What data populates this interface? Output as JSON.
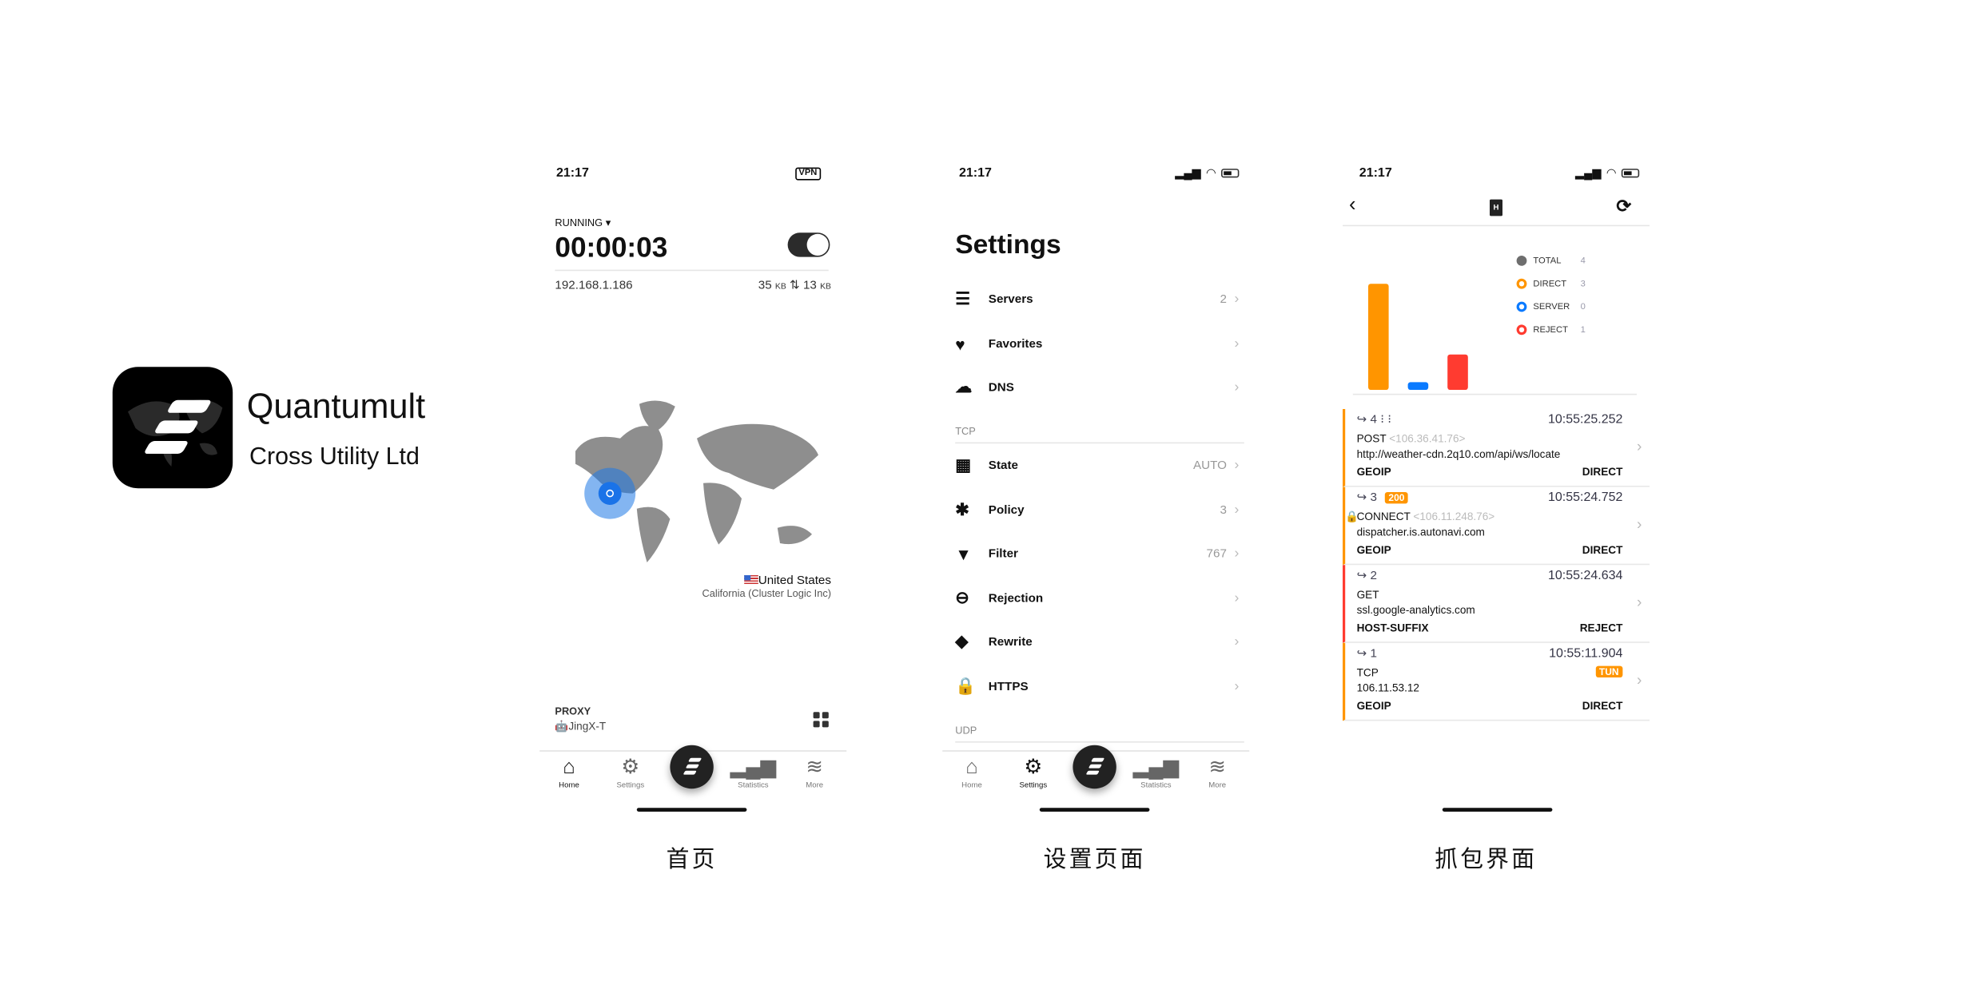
{
  "brand": {
    "name": "Quantumult",
    "company": "Cross Utility Ltd"
  },
  "status_time": "21:17",
  "home": {
    "vpn_badge": "VPN",
    "state": "RUNNING",
    "timer": "00:00:03",
    "vpn_on": true,
    "ip": "192.168.1.186",
    "download": "35",
    "download_unit": "KB",
    "upload": "13",
    "upload_unit": "KB",
    "country": "United States",
    "region": "California (Cluster Logic Inc)",
    "proxy_label": "PROXY",
    "proxy_name": "JingX-T",
    "caption": "首页"
  },
  "tabs": [
    {
      "label": "Home",
      "icon": "house-icon"
    },
    {
      "label": "Settings",
      "icon": "gear-icon"
    },
    {
      "label": "Statistics",
      "icon": "bar-chart-icon"
    },
    {
      "label": "More",
      "icon": "layers-icon"
    }
  ],
  "settings": {
    "title": "Settings",
    "items": [
      {
        "label": "Servers",
        "value": "2",
        "icon": "server-icon"
      },
      {
        "label": "Favorites",
        "value": "",
        "icon": "heart-icon"
      },
      {
        "label": "DNS",
        "value": "",
        "icon": "cloud-icon"
      }
    ],
    "tcp_label": "TCP",
    "tcp_items": [
      {
        "label": "State",
        "value": "AUTO",
        "icon": "grid-icon"
      },
      {
        "label": "Policy",
        "value": "3",
        "icon": "asterisk-icon"
      },
      {
        "label": "Filter",
        "value": "767",
        "icon": "filter-icon"
      },
      {
        "label": "Rejection",
        "value": "",
        "icon": "minus-circle-icon"
      },
      {
        "label": "Rewrite",
        "value": "",
        "icon": "tag-icon"
      },
      {
        "label": "HTTPS",
        "value": "",
        "icon": "lock-icon"
      }
    ],
    "udp_label": "UDP",
    "caption": "设置页面"
  },
  "capture": {
    "legend": [
      {
        "label": "TOTAL",
        "value": "4",
        "color": "#6e6e6e"
      },
      {
        "label": "DIRECT",
        "value": "3",
        "color": "#ff9500"
      },
      {
        "label": "SERVER",
        "value": "0",
        "color": "#0a7aff"
      },
      {
        "label": "REJECT",
        "value": "1",
        "color": "#ff3b30"
      }
    ],
    "chart_data": {
      "type": "bar",
      "categories": [
        "DIRECT",
        "SERVER",
        "REJECT"
      ],
      "values": [
        3,
        0,
        1
      ],
      "colors": [
        "#ff9500",
        "#0a7aff",
        "#ff3b30"
      ]
    },
    "rows": [
      {
        "id": "↪ 4 ⁝ ⁝",
        "time": "10:55:25.252",
        "method": "POST",
        "ip": "<106.36.41.76>",
        "url": "http://weather-cdn.2q10.com/api/ws/locate",
        "rule": "GEOIP",
        "policy": "DIRECT",
        "badge": "",
        "lock": false,
        "color": "#ff9500"
      },
      {
        "id": "↪ 3",
        "time": "10:55:24.752",
        "method": "CONNECT",
        "ip": "<106.11.248.76>",
        "url": "dispatcher.is.autonavi.com",
        "rule": "GEOIP",
        "policy": "DIRECT",
        "badge": "200",
        "lock": true,
        "color": "#ff9500"
      },
      {
        "id": "↪ 2",
        "time": "10:55:24.634",
        "method": "GET",
        "ip": "",
        "url": "ssl.google-analytics.com",
        "rule": "HOST-SUFFIX",
        "policy": "REJECT",
        "badge": "",
        "lock": false,
        "color": "#ff3b30"
      },
      {
        "id": "↪ 1",
        "time": "10:55:11.904",
        "method": "TCP",
        "ip": "",
        "url": "106.11.53.12",
        "rule": "GEOIP",
        "policy": "DIRECT",
        "badge": "TUN",
        "lock": false,
        "color": "#ff9500"
      }
    ],
    "caption": "抓包界面"
  }
}
